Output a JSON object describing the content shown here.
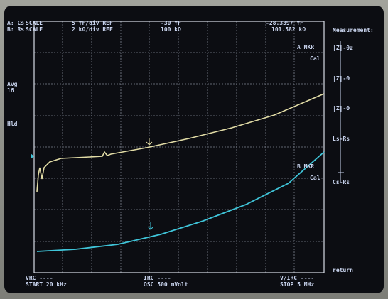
{
  "header": {
    "row_a": [
      "A: Cs",
      "SCALE",
      "5 fF/div REF",
      "-30 fF",
      "-28.3397 fF"
    ],
    "row_b": [
      "B: Rs",
      "SCALE",
      "2 kΩ/div REF",
      "100 kΩ",
      "101.582 kΩ"
    ]
  },
  "side": {
    "avg": "Avg",
    "avg_count": "16",
    "hold": "Hld"
  },
  "markers": {
    "a": [
      "A MKR",
      "Cal"
    ],
    "b": [
      "B MKR",
      "Cal"
    ]
  },
  "menu": {
    "title": "Measurement:",
    "items": [
      "|Z|-θz",
      "|Z|-θ",
      "|Z|-θ",
      "Ls-Rs",
      "Cs-Rs"
    ],
    "return": "return"
  },
  "footer": {
    "left": [
      "VRC ----",
      "START 20 kHz"
    ],
    "middle": [
      "IRC ----",
      "OSC 500 mVolt"
    ],
    "right": [
      "V/IRC ----",
      "STOP 5 MHz"
    ]
  }
}
